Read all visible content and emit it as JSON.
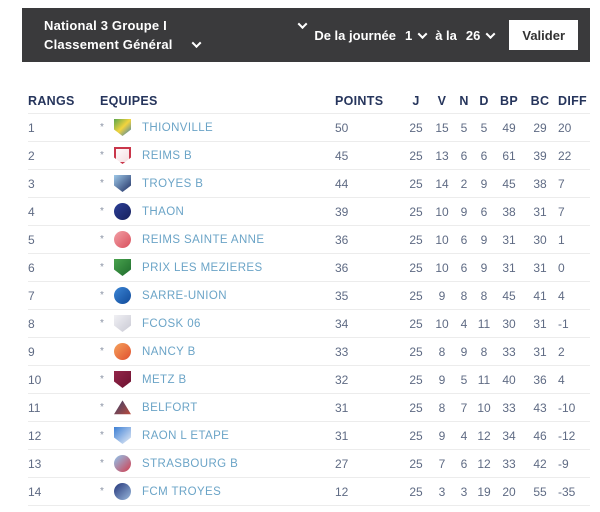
{
  "topbar": {
    "competition_label": "National 3 Groupe I",
    "classement_label": "Classement Général",
    "range_prefix": "De la journée",
    "range_from": "1",
    "range_middle": "à la",
    "range_to": "26",
    "submit_label": "Valider"
  },
  "table": {
    "headers": {
      "rank": "RANGS",
      "team": "EQUIPES",
      "points": "POINTS",
      "j": "J",
      "v": "V",
      "n": "N",
      "d": "D",
      "bp": "BP",
      "bc": "BC",
      "diff": "DIFF"
    },
    "row_marker": "*",
    "rows": [
      {
        "rank": "1",
        "team": "THIONVILLE",
        "points": "50",
        "j": "25",
        "v": "15",
        "n": "5",
        "d": "5",
        "bp": "49",
        "bc": "29",
        "diff": "20",
        "badge": {
          "shape": "shield",
          "colors": [
            "#5aa64c",
            "#f3d43e",
            "#2e79b8"
          ]
        }
      },
      {
        "rank": "2",
        "team": "REIMS B",
        "points": "45",
        "j": "25",
        "v": "13",
        "n": "6",
        "d": "6",
        "bp": "61",
        "bc": "39",
        "diff": "22",
        "badge": {
          "shape": "shield",
          "colors": [
            "#ffffff",
            "#f4d9dc"
          ],
          "ring": "#c9364a"
        }
      },
      {
        "rank": "3",
        "team": "TROYES B",
        "points": "44",
        "j": "25",
        "v": "14",
        "n": "2",
        "d": "9",
        "bp": "45",
        "bc": "38",
        "diff": "7",
        "badge": {
          "shape": "shield",
          "colors": [
            "#9ec8e8",
            "#202f63"
          ]
        }
      },
      {
        "rank": "4",
        "team": "THAON",
        "points": "39",
        "j": "25",
        "v": "10",
        "n": "9",
        "d": "6",
        "bp": "38",
        "bc": "31",
        "diff": "7",
        "badge": {
          "shape": "circle",
          "colors": [
            "#2c3f97",
            "#16205c"
          ]
        }
      },
      {
        "rank": "5",
        "team": "REIMS SAINTE ANNE",
        "points": "36",
        "j": "25",
        "v": "10",
        "n": "6",
        "d": "9",
        "bp": "31",
        "bc": "30",
        "diff": "1",
        "badge": {
          "shape": "circle",
          "colors": [
            "#f2a0a6",
            "#d94f5c"
          ]
        }
      },
      {
        "rank": "6",
        "team": "PRIX LES MEZIERES",
        "points": "36",
        "j": "25",
        "v": "10",
        "n": "6",
        "d": "9",
        "bp": "31",
        "bc": "31",
        "diff": "0",
        "badge": {
          "shape": "shield",
          "colors": [
            "#49a34d",
            "#1e6b2d"
          ]
        }
      },
      {
        "rank": "7",
        "team": "SARRE-UNION",
        "points": "35",
        "j": "25",
        "v": "9",
        "n": "8",
        "d": "8",
        "bp": "45",
        "bc": "41",
        "diff": "4",
        "badge": {
          "shape": "circle",
          "colors": [
            "#3b86d6",
            "#114a99"
          ]
        }
      },
      {
        "rank": "8",
        "team": "FCOSK 06",
        "points": "34",
        "j": "25",
        "v": "10",
        "n": "4",
        "d": "11",
        "bp": "30",
        "bc": "31",
        "diff": "-1",
        "badge": {
          "shape": "shield",
          "colors": [
            "#f0f0f4",
            "#c9c9d4"
          ]
        }
      },
      {
        "rank": "9",
        "team": "NANCY B",
        "points": "33",
        "j": "25",
        "v": "8",
        "n": "9",
        "d": "8",
        "bp": "33",
        "bc": "31",
        "diff": "2",
        "badge": {
          "shape": "circle",
          "colors": [
            "#f5a25c",
            "#e04f2e"
          ]
        }
      },
      {
        "rank": "10",
        "team": "METZ B",
        "points": "32",
        "j": "25",
        "v": "9",
        "n": "5",
        "d": "11",
        "bp": "40",
        "bc": "36",
        "diff": "4",
        "badge": {
          "shape": "shield",
          "colors": [
            "#93264a",
            "#6d1230"
          ]
        }
      },
      {
        "rank": "11",
        "team": "BELFORT",
        "points": "31",
        "j": "25",
        "v": "8",
        "n": "7",
        "d": "10",
        "bp": "33",
        "bc": "43",
        "diff": "-10",
        "badge": {
          "shape": "triangle",
          "colors": [
            "#31406e",
            "#c24b3a"
          ]
        }
      },
      {
        "rank": "12",
        "team": "RAON L ETAPE",
        "points": "31",
        "j": "25",
        "v": "9",
        "n": "4",
        "d": "12",
        "bp": "34",
        "bc": "46",
        "diff": "-12",
        "badge": {
          "shape": "shield",
          "colors": [
            "#3d7fd4",
            "#e8eef7"
          ]
        }
      },
      {
        "rank": "13",
        "team": "STRASBOURG B",
        "points": "27",
        "j": "25",
        "v": "7",
        "n": "6",
        "d": "12",
        "bp": "33",
        "bc": "42",
        "diff": "-9",
        "badge": {
          "shape": "circle",
          "colors": [
            "#8ec7ef",
            "#d23d4e"
          ]
        }
      },
      {
        "rank": "14",
        "team": "FCM TROYES",
        "points": "12",
        "j": "25",
        "v": "3",
        "n": "3",
        "d": "19",
        "bp": "20",
        "bc": "55",
        "diff": "-35",
        "badge": {
          "shape": "circle",
          "colors": [
            "#24367a",
            "#9ab9dc"
          ]
        }
      }
    ]
  },
  "colors": {
    "topbar_bg": "#3a3a3c",
    "header_text": "#26355c",
    "team_text": "#6ba4c7",
    "cell_text": "#5f6b84",
    "row_border": "#ececec"
  }
}
